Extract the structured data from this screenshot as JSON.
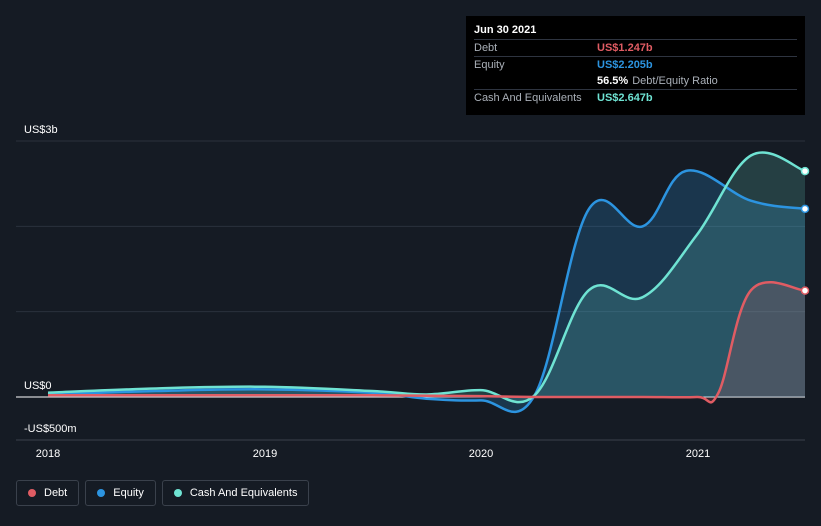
{
  "tooltip": {
    "date": "Jun 30 2021",
    "rows": [
      {
        "label": "Debt",
        "value": "US$1.247b",
        "color": "#e05c63"
      },
      {
        "label": "Equity",
        "value": "US$2.205b",
        "color": "#2c94e0"
      },
      {
        "label": "Cash And Equivalents",
        "value": "US$2.647b",
        "color": "#6fe3d3"
      }
    ],
    "ratio_value": "56.5%",
    "ratio_label": "Debt/Equity Ratio"
  },
  "legend": [
    {
      "label": "Debt",
      "color": "#e05c63"
    },
    {
      "label": "Equity",
      "color": "#2c94e0"
    },
    {
      "label": "Cash And Equivalents",
      "color": "#6fe3d3"
    }
  ],
  "chart_data": {
    "type": "area",
    "title": "",
    "xlabel": "",
    "ylabel": "",
    "x_ticks": [
      "2018",
      "2019",
      "2020",
      "2021"
    ],
    "y_tick_labels": [
      "US$3b",
      "US$0",
      "-US$500m"
    ],
    "ylim": [
      -0.5,
      3.0
    ],
    "grid": true,
    "legend_position": "bottom-left",
    "series": [
      {
        "name": "Debt",
        "color": "#e05c63",
        "x": [
          2018.0,
          2018.5,
          2019.0,
          2019.5,
          2020.0,
          2020.25,
          2020.5,
          2020.75,
          2021.0,
          2021.1,
          2021.25,
          2021.5
        ],
        "y": [
          0.02,
          0.02,
          0.02,
          0.02,
          0.01,
          0.0,
          0.0,
          0.0,
          0.0,
          0.05,
          1.25,
          1.247
        ]
      },
      {
        "name": "Equity",
        "color": "#2c94e0",
        "x": [
          2018.0,
          2018.5,
          2019.0,
          2019.5,
          2019.75,
          2020.0,
          2020.25,
          2020.5,
          2020.75,
          2020.95,
          2021.25,
          2021.5
        ],
        "y": [
          0.03,
          0.07,
          0.09,
          0.05,
          -0.02,
          -0.04,
          0.02,
          2.2,
          2.0,
          2.65,
          2.3,
          2.205
        ]
      },
      {
        "name": "Cash And Equivalents",
        "color": "#6fe3d3",
        "x": [
          2018.0,
          2018.5,
          2019.0,
          2019.5,
          2019.75,
          2020.0,
          2020.25,
          2020.5,
          2020.75,
          2021.0,
          2021.25,
          2021.5
        ],
        "y": [
          0.05,
          0.1,
          0.12,
          0.07,
          0.03,
          0.08,
          0.02,
          1.25,
          1.17,
          1.9,
          2.83,
          2.647
        ]
      }
    ]
  }
}
